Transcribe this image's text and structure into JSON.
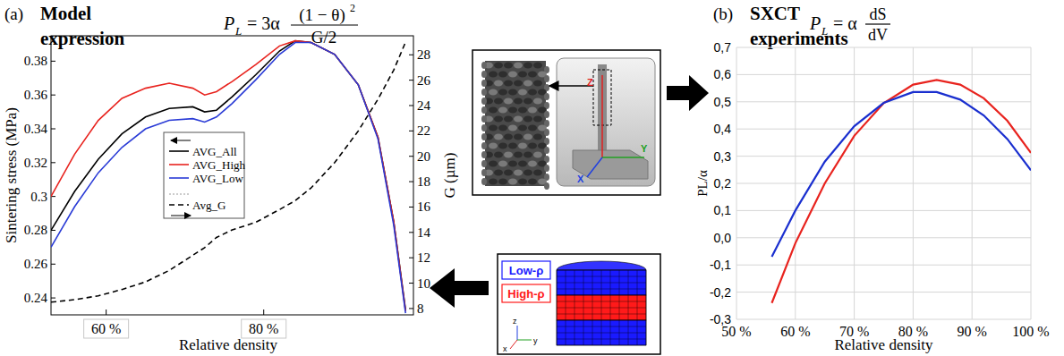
{
  "chart_data": [
    {
      "type": "line",
      "title": "Model expression",
      "annotations": {
        "panel": "(a)",
        "formula": [
          "P",
          "L",
          "= 3α",
          "(1 − θ)",
          "2",
          "G/2"
        ]
      },
      "x_label": "Relative density",
      "y_label": "Sintering stress (MPa)",
      "y2_label": "G (µm)",
      "x": [
        53,
        56,
        59,
        62,
        65,
        68,
        71,
        72.5,
        74,
        76,
        79,
        82,
        84,
        86,
        89,
        92,
        94.5,
        96.5,
        98
      ],
      "xlim": [
        53,
        99
      ],
      "xticks": [
        {
          "value": 60,
          "label": "60 %"
        },
        {
          "value": 80,
          "label": "80 %"
        }
      ],
      "ylim": [
        0.23,
        0.395
      ],
      "yticks": [
        0.24,
        0.26,
        0.28,
        0.3,
        0.32,
        0.34,
        0.36,
        0.38
      ],
      "y2lim": [
        7.5,
        29.5
      ],
      "y2ticks": [
        8,
        10,
        12,
        14,
        16,
        18,
        20,
        22,
        24,
        26,
        28
      ],
      "legend": "center",
      "series": [
        {
          "name": "AVG_All",
          "color": "#000000",
          "line_style": "solid",
          "values": [
            0.28,
            0.303,
            0.322,
            0.337,
            0.347,
            0.352,
            0.353,
            0.35,
            0.351,
            0.359,
            0.372,
            0.386,
            0.392,
            0.391,
            0.384,
            0.366,
            0.335,
            0.285,
            0.233
          ]
        },
        {
          "name": "AVG_High",
          "color": "#e8231e",
          "line_style": "solid",
          "values": [
            0.3,
            0.325,
            0.345,
            0.358,
            0.364,
            0.367,
            0.364,
            0.36,
            0.362,
            0.368,
            0.378,
            0.389,
            0.392,
            0.391,
            0.384,
            0.366,
            0.335,
            0.285,
            0.232
          ]
        },
        {
          "name": "AVG_Low",
          "color": "#2a3bd6",
          "line_style": "solid",
          "values": [
            0.27,
            0.294,
            0.314,
            0.329,
            0.34,
            0.345,
            0.346,
            0.344,
            0.347,
            0.355,
            0.369,
            0.384,
            0.391,
            0.391,
            0.384,
            0.366,
            0.334,
            0.283,
            0.231
          ]
        },
        {
          "name": "Avg_G",
          "color": "#000000",
          "line_style": "dashed",
          "axis": "y2",
          "values": [
            8.5,
            8.7,
            9.0,
            9.5,
            10.1,
            11.0,
            12.2,
            12.8,
            13.6,
            14.2,
            14.8,
            15.8,
            16.5,
            17.5,
            19.5,
            22.0,
            24.5,
            26.8,
            29.0
          ]
        }
      ]
    },
    {
      "type": "line",
      "title": "SXCT experiments",
      "annotations": {
        "panel": "(b)",
        "formula": [
          "P",
          "L",
          "= α",
          "dS",
          "dV"
        ]
      },
      "x_label": "Relative density",
      "y_label": "PL/α",
      "x": [
        56,
        60,
        65,
        70,
        75,
        80,
        84,
        88,
        92,
        96,
        100
      ],
      "xlim": [
        50,
        100
      ],
      "xticks": [
        {
          "value": 50,
          "label": "50 %"
        },
        {
          "value": 60,
          "label": "60 %"
        },
        {
          "value": 70,
          "label": "70 %"
        },
        {
          "value": 80,
          "label": "80 %"
        },
        {
          "value": 90,
          "label": "90 %"
        },
        {
          "value": 100,
          "label": "100 %"
        }
      ],
      "ylim": [
        -0.3,
        0.7
      ],
      "yticks": [
        {
          "value": 0.7,
          "label": "0,7"
        },
        {
          "value": 0.6,
          "label": "0,6"
        },
        {
          "value": 0.5,
          "label": "0,5"
        },
        {
          "value": 0.4,
          "label": "0,4"
        },
        {
          "value": 0.3,
          "label": "0,3"
        },
        {
          "value": 0.2,
          "label": "0,2"
        },
        {
          "value": 0.1,
          "label": "0,1"
        },
        {
          "value": 0,
          "label": "0,0"
        },
        {
          "value": -0.1,
          "label": "-0,1"
        },
        {
          "value": -0.2,
          "label": "-0,2"
        },
        {
          "value": -0.3,
          "label": "-0,3"
        }
      ],
      "grid": true,
      "series": [
        {
          "color": "#e8231e",
          "line_style": "solid",
          "values": [
            -0.24,
            -0.02,
            0.2,
            0.375,
            0.495,
            0.563,
            0.58,
            0.563,
            0.513,
            0.43,
            0.312
          ]
        },
        {
          "color": "#1a2fcf",
          "line_style": "solid",
          "values": [
            -0.07,
            0.1,
            0.28,
            0.41,
            0.496,
            0.536,
            0.536,
            0.508,
            0.45,
            0.363,
            0.248
          ]
        }
      ]
    }
  ],
  "diagram": {
    "sample_axes": [
      "Z",
      "Y",
      "X"
    ],
    "mesh_legend": [
      {
        "label": "Low-ρ",
        "color": "#1a1aff"
      },
      {
        "label": "High-ρ",
        "color": "#ff1a1a"
      }
    ],
    "mesh_axes": [
      "z",
      "y",
      "x"
    ]
  }
}
